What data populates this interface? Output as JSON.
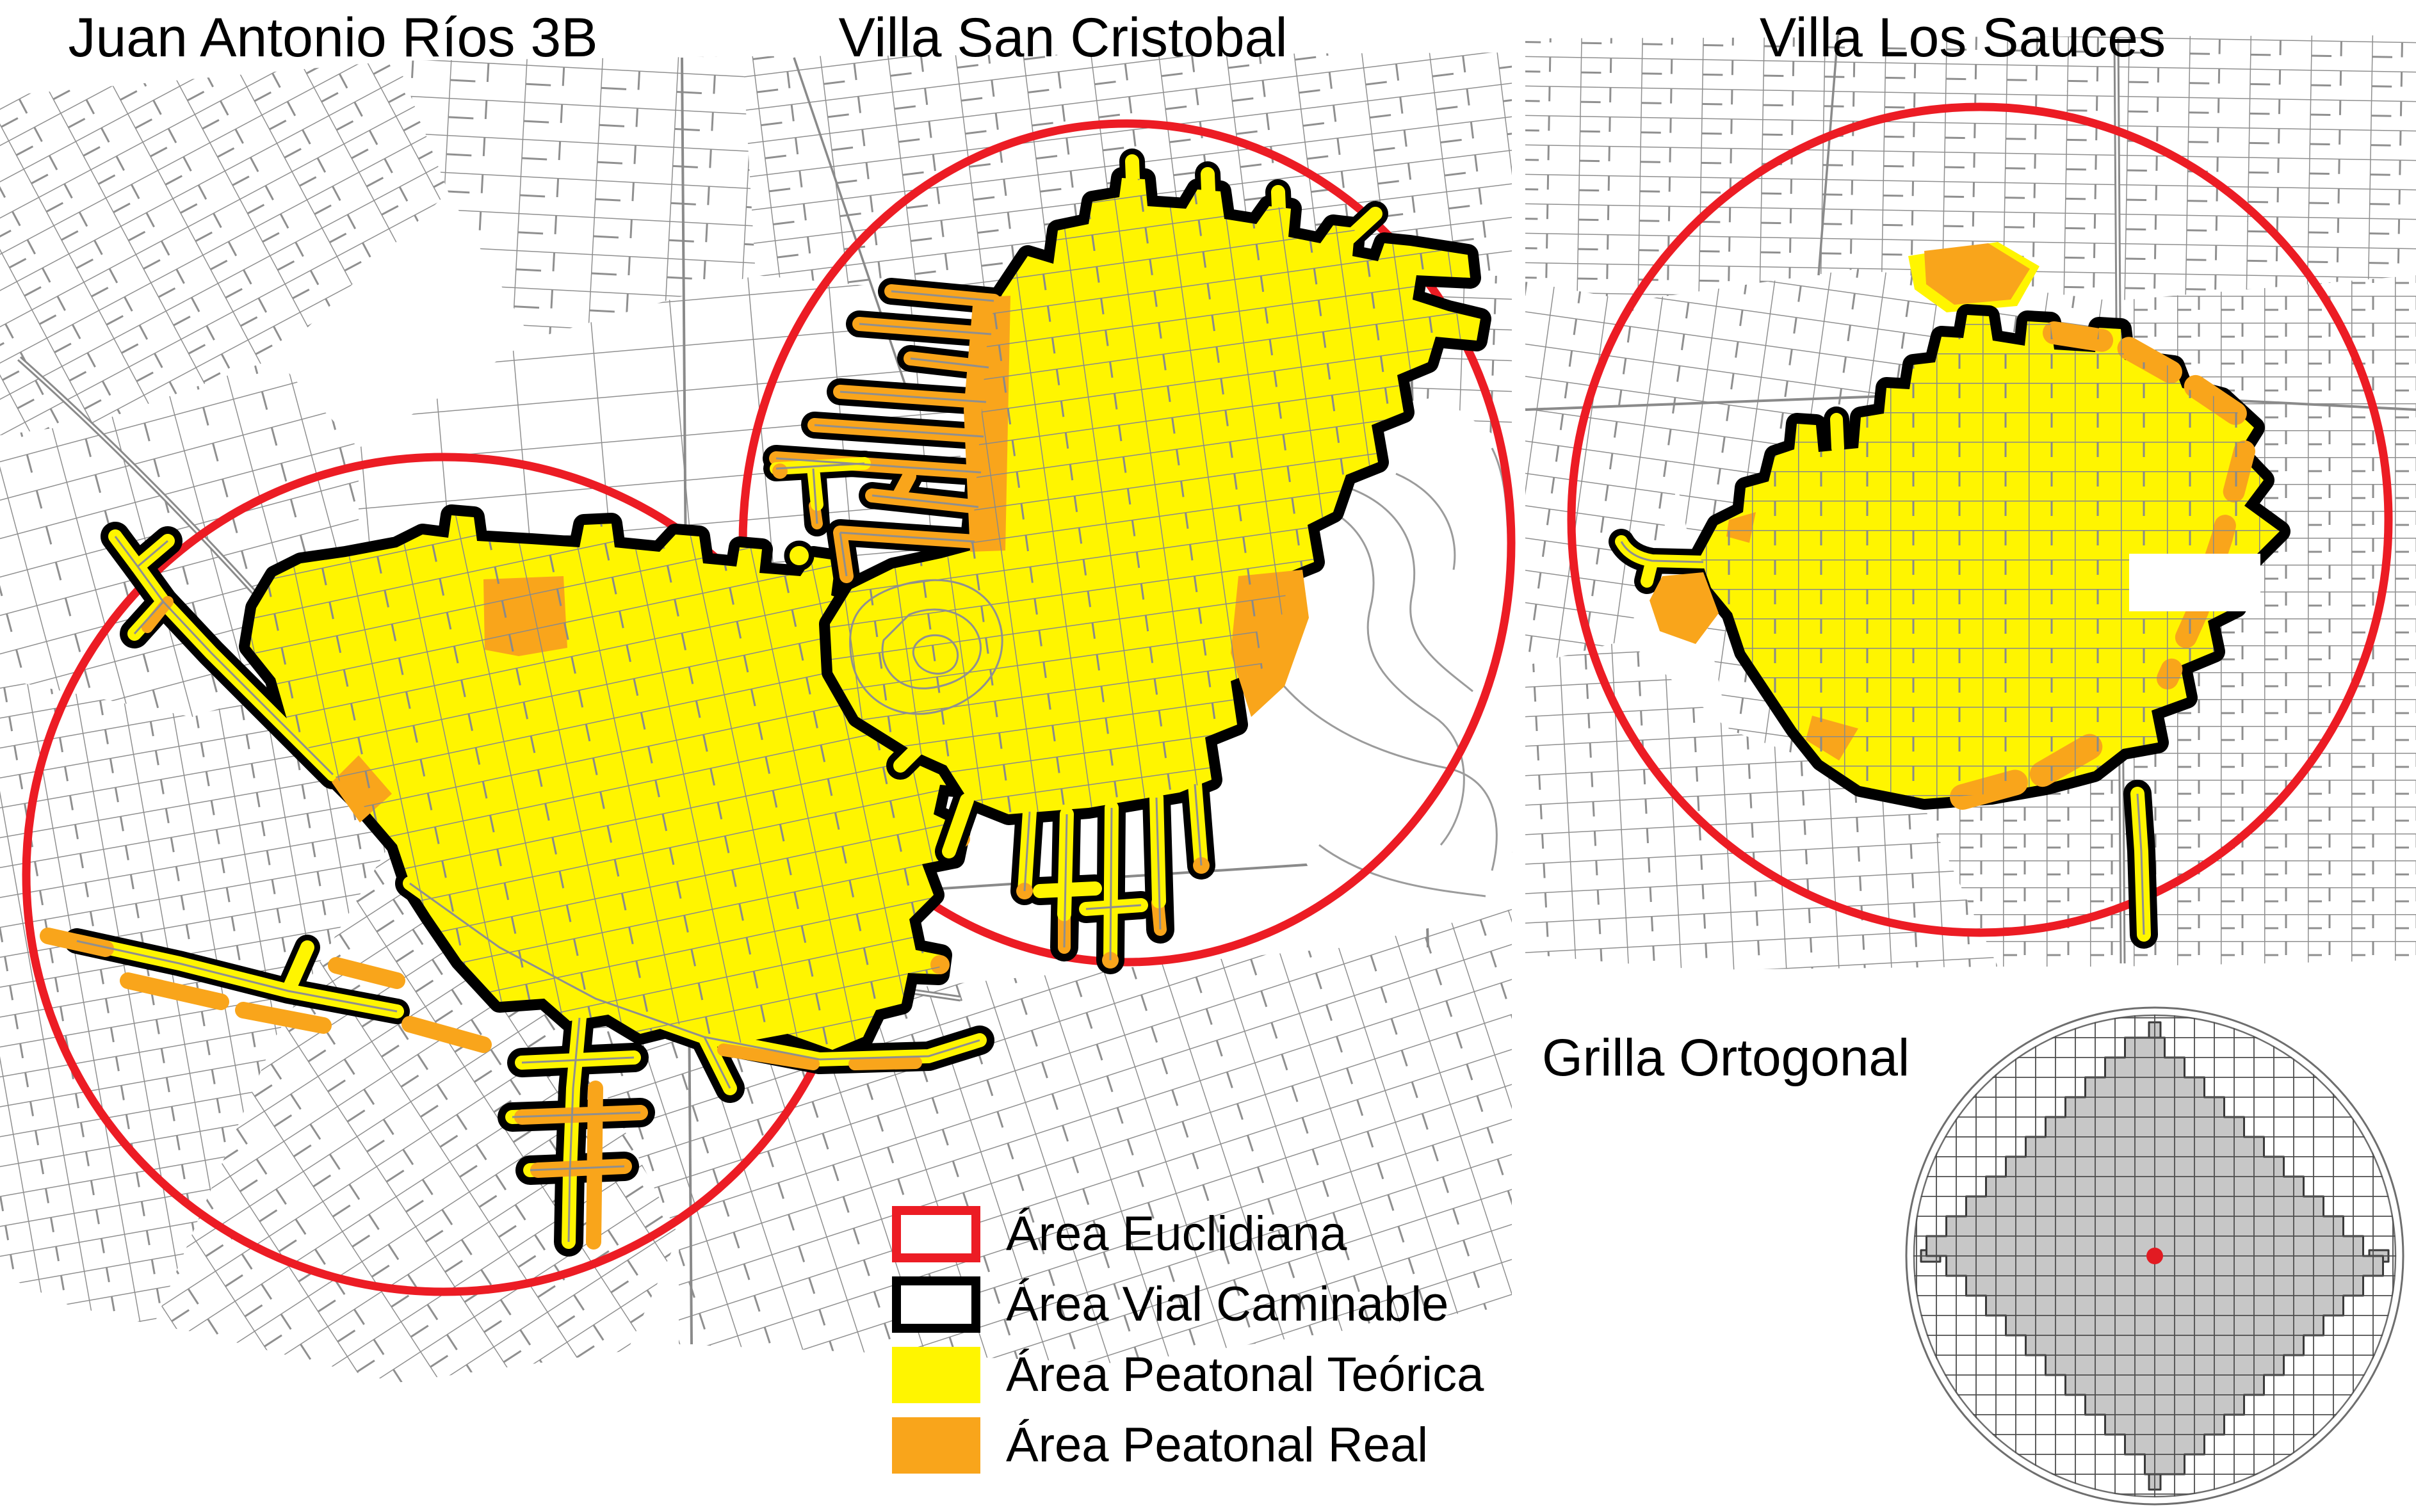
{
  "panels": [
    {
      "title": "Juan Antonio Ríos 3B"
    },
    {
      "title": "Villa San Cristobal"
    },
    {
      "title": "Villa Los Sauces"
    }
  ],
  "legend": {
    "items": [
      {
        "label": "Área Euclidiana",
        "swatch": "red-outline",
        "color": "#EC1C24"
      },
      {
        "label": "Área Vial Caminable",
        "swatch": "black-outline",
        "color": "#000000"
      },
      {
        "label": "Área Peatonal Teórica",
        "swatch": "yellow-fill",
        "color": "#FFF500"
      },
      {
        "label": "Área Peatonal Real",
        "swatch": "orange-fill",
        "color": "#F9A51B"
      }
    ]
  },
  "grid_diagram": {
    "label": "Grilla Ortogonal"
  },
  "colors": {
    "euclidean_circle": "#EC1C24",
    "walkable_outline": "#000000",
    "theoretical_area": "#FFF500",
    "real_area": "#F9A51B",
    "streets": "#8F8F8F",
    "grid_diamond_fill": "#C7C7C7"
  }
}
